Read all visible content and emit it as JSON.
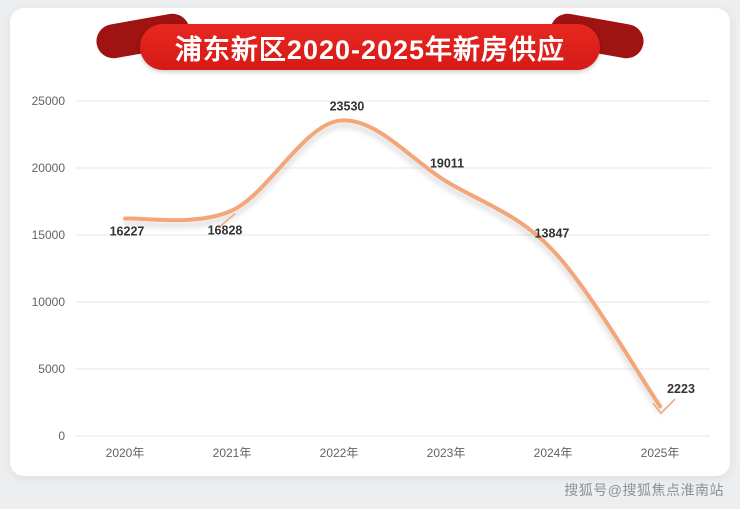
{
  "chart_data": {
    "type": "line",
    "title": "浦东新区2020-2025年新房供应",
    "categories": [
      "2020年",
      "2021年",
      "2022年",
      "2023年",
      "2024年",
      "2025年"
    ],
    "values": [
      16227,
      16828,
      23530,
      19011,
      13847,
      2223
    ],
    "xlabel": "",
    "ylabel": "",
    "ylim": [
      0,
      25000
    ],
    "yticks": [
      0,
      5000,
      10000,
      15000,
      20000,
      25000
    ],
    "grid": true,
    "legend": false,
    "smooth": true,
    "line_color": "#f2a679"
  },
  "watermark": {
    "text": "搜狐号@搜狐焦点淮南站"
  },
  "colors": {
    "page_bg": "#edeef0",
    "card_bg": "#ffffff",
    "banner_red": "#de1f1a",
    "banner_dark_red": "#9f1313",
    "grid_line": "#e7e7e7",
    "axis_text": "#5f6368",
    "data_label": "#333333",
    "watermark_text": "#8d9197"
  }
}
